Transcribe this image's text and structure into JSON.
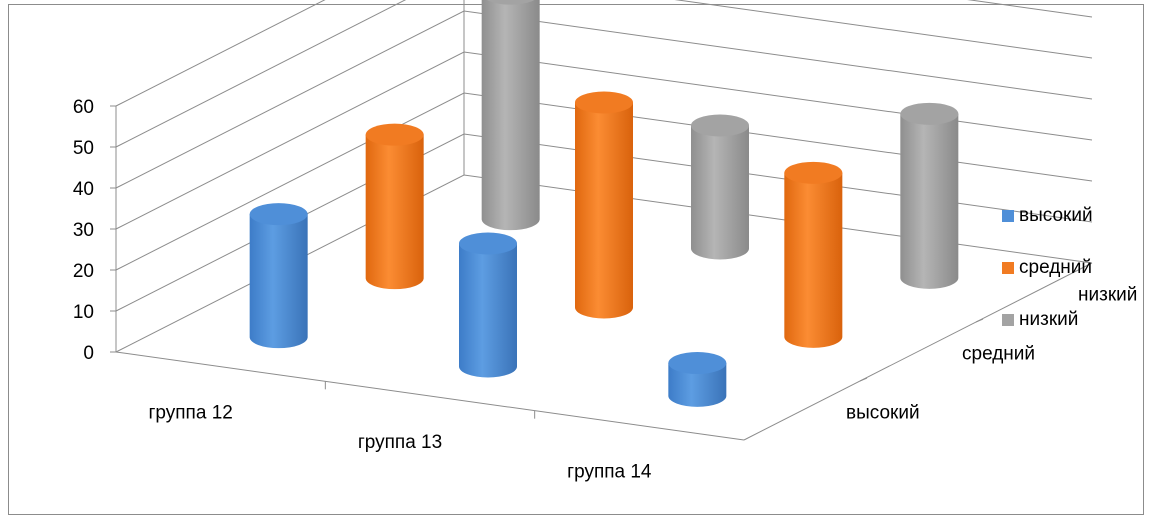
{
  "chart_data": {
    "type": "bar",
    "subtype": "3d-cylinder",
    "title": "",
    "xlabel": "",
    "ylabel": "",
    "categories": [
      "группа 12",
      "группа 13",
      "группа 14"
    ],
    "series": [
      {
        "name": "высокий",
        "values": [
          30,
          30,
          8
        ]
      },
      {
        "name": "средний",
        "values": [
          35,
          50,
          40
        ]
      },
      {
        "name": "низкий",
        "values": [
          55,
          30,
          40
        ]
      }
    ],
    "depth_labels": [
      "высокий",
      "средний",
      "низкий"
    ],
    "ylim": [
      0,
      60
    ],
    "yticks": [
      "0",
      "10",
      "20",
      "30",
      "40",
      "50",
      "60"
    ],
    "grid": true,
    "legend_position": "right",
    "colors": {
      "высокий": "#4f8fd8",
      "средний": "#f17b22",
      "низкий": "#a3a3a3"
    }
  }
}
